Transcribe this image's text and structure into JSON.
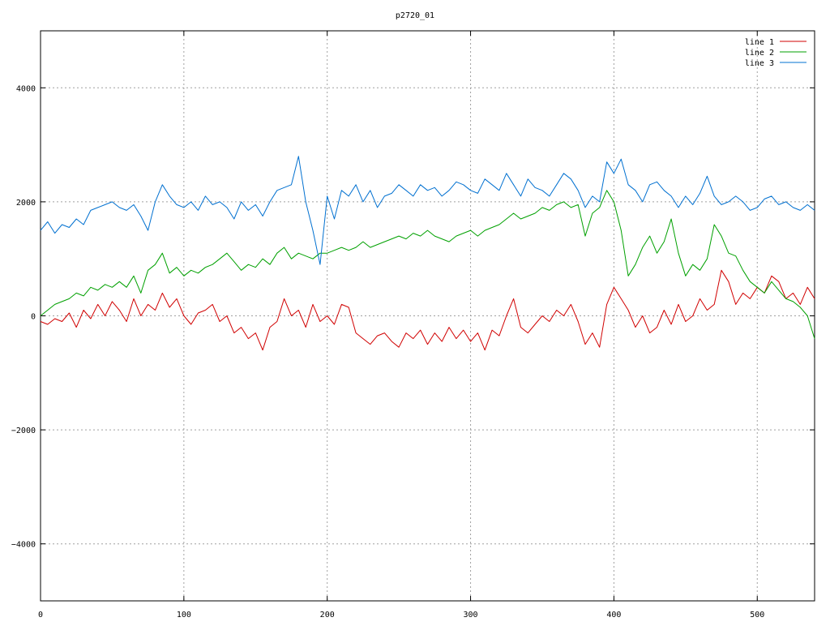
{
  "chart_data": {
    "type": "line",
    "title": "p2720_01",
    "xlim": [
      0,
      540
    ],
    "ylim": [
      -5000,
      5000
    ],
    "x_ticks": [
      0,
      100,
      200,
      300,
      400,
      500
    ],
    "y_ticks": [
      -4000,
      -2000,
      0,
      2000,
      4000
    ],
    "x_tick_labels": [
      "0",
      "100",
      "200",
      "300",
      "400",
      "500"
    ],
    "y_tick_labels": [
      "-4000",
      "-2000",
      "0",
      "2000",
      "4000"
    ],
    "grid": true,
    "legend_position": "top-right",
    "series": [
      {
        "name": "line 1",
        "color": "#d00000",
        "x": [
          0,
          5,
          10,
          15,
          20,
          25,
          30,
          35,
          40,
          45,
          50,
          55,
          60,
          65,
          70,
          75,
          80,
          85,
          90,
          95,
          100,
          105,
          110,
          115,
          120,
          125,
          130,
          135,
          140,
          145,
          150,
          155,
          160,
          165,
          170,
          175,
          180,
          185,
          190,
          195,
          200,
          205,
          210,
          215,
          220,
          225,
          230,
          235,
          240,
          245,
          250,
          255,
          260,
          265,
          270,
          275,
          280,
          285,
          290,
          295,
          300,
          305,
          310,
          315,
          320,
          325,
          330,
          335,
          340,
          345,
          350,
          355,
          360,
          365,
          370,
          375,
          380,
          385,
          390,
          395,
          400,
          405,
          410,
          415,
          420,
          425,
          430,
          435,
          440,
          445,
          450,
          455,
          460,
          465,
          470,
          475,
          480,
          485,
          490,
          495,
          500,
          505,
          510,
          515,
          520,
          525,
          530,
          535,
          540
        ],
        "y": [
          -100,
          -150,
          -50,
          -100,
          50,
          -200,
          100,
          -50,
          200,
          0,
          250,
          100,
          -100,
          300,
          0,
          200,
          100,
          400,
          150,
          300,
          0,
          -150,
          50,
          100,
          200,
          -100,
          0,
          -300,
          -200,
          -400,
          -300,
          -600,
          -200,
          -100,
          300,
          0,
          100,
          -200,
          200,
          -100,
          0,
          -150,
          200,
          150,
          -300,
          -400,
          -500,
          -350,
          -300,
          -450,
          -550,
          -300,
          -400,
          -250,
          -500,
          -300,
          -450,
          -200,
          -400,
          -250,
          -450,
          -300,
          -600,
          -250,
          -350,
          0,
          300,
          -200,
          -300,
          -150,
          0,
          -100,
          100,
          0,
          200,
          -100,
          -500,
          -300,
          -550,
          200,
          500,
          300,
          100,
          -200,
          0,
          -300,
          -200,
          100,
          -150,
          200,
          -100,
          0,
          300,
          100,
          200,
          800,
          600,
          200,
          400,
          300,
          500,
          400,
          700,
          600,
          300,
          400,
          200,
          500,
          300
        ]
      },
      {
        "name": "line 2",
        "color": "#00a000",
        "x": [
          0,
          5,
          10,
          15,
          20,
          25,
          30,
          35,
          40,
          45,
          50,
          55,
          60,
          65,
          70,
          75,
          80,
          85,
          90,
          95,
          100,
          105,
          110,
          115,
          120,
          125,
          130,
          135,
          140,
          145,
          150,
          155,
          160,
          165,
          170,
          175,
          180,
          185,
          190,
          195,
          200,
          205,
          210,
          215,
          220,
          225,
          230,
          235,
          240,
          245,
          250,
          255,
          260,
          265,
          270,
          275,
          280,
          285,
          290,
          295,
          300,
          305,
          310,
          315,
          320,
          325,
          330,
          335,
          340,
          345,
          350,
          355,
          360,
          365,
          370,
          375,
          380,
          385,
          390,
          395,
          400,
          405,
          410,
          415,
          420,
          425,
          430,
          435,
          440,
          445,
          450,
          455,
          460,
          465,
          470,
          475,
          480,
          485,
          490,
          495,
          500,
          505,
          510,
          515,
          520,
          525,
          530,
          535,
          540
        ],
        "y": [
          0,
          100,
          200,
          250,
          300,
          400,
          350,
          500,
          450,
          550,
          500,
          600,
          500,
          700,
          400,
          800,
          900,
          1100,
          750,
          850,
          700,
          800,
          750,
          850,
          900,
          1000,
          1100,
          950,
          800,
          900,
          850,
          1000,
          900,
          1100,
          1200,
          1000,
          1100,
          1050,
          1000,
          1100,
          1100,
          1150,
          1200,
          1150,
          1200,
          1300,
          1200,
          1250,
          1300,
          1350,
          1400,
          1350,
          1450,
          1400,
          1500,
          1400,
          1350,
          1300,
          1400,
          1450,
          1500,
          1400,
          1500,
          1550,
          1600,
          1700,
          1800,
          1700,
          1750,
          1800,
          1900,
          1850,
          1950,
          2000,
          1900,
          1950,
          1400,
          1800,
          1900,
          2200,
          2000,
          1500,
          700,
          900,
          1200,
          1400,
          1100,
          1300,
          1700,
          1100,
          700,
          900,
          800,
          1000,
          1600,
          1400,
          1100,
          1050,
          800,
          600,
          500,
          400,
          600,
          450,
          300,
          250,
          150,
          0,
          -400
        ]
      },
      {
        "name": "line 3",
        "color": "#0070d0",
        "x": [
          0,
          5,
          10,
          15,
          20,
          25,
          30,
          35,
          40,
          45,
          50,
          55,
          60,
          65,
          70,
          75,
          80,
          85,
          90,
          95,
          100,
          105,
          110,
          115,
          120,
          125,
          130,
          135,
          140,
          145,
          150,
          155,
          160,
          165,
          170,
          175,
          180,
          185,
          190,
          195,
          200,
          205,
          210,
          215,
          220,
          225,
          230,
          235,
          240,
          245,
          250,
          255,
          260,
          265,
          270,
          275,
          280,
          285,
          290,
          295,
          300,
          305,
          310,
          315,
          320,
          325,
          330,
          335,
          340,
          345,
          350,
          355,
          360,
          365,
          370,
          375,
          380,
          385,
          390,
          395,
          400,
          405,
          410,
          415,
          420,
          425,
          430,
          435,
          440,
          445,
          450,
          455,
          460,
          465,
          470,
          475,
          480,
          485,
          490,
          495,
          500,
          505,
          510,
          515,
          520,
          525,
          530,
          535,
          540
        ],
        "y": [
          1500,
          1650,
          1450,
          1600,
          1550,
          1700,
          1600,
          1850,
          1900,
          1950,
          2000,
          1900,
          1850,
          1950,
          1750,
          1500,
          2000,
          2300,
          2100,
          1950,
          1900,
          2000,
          1850,
          2100,
          1950,
          2000,
          1900,
          1700,
          2000,
          1850,
          1950,
          1750,
          2000,
          2200,
          2250,
          2300,
          2800,
          2000,
          1500,
          900,
          2100,
          1700,
          2200,
          2100,
          2300,
          2000,
          2200,
          1900,
          2100,
          2150,
          2300,
          2200,
          2100,
          2300,
          2200,
          2250,
          2100,
          2200,
          2350,
          2300,
          2200,
          2150,
          2400,
          2300,
          2200,
          2500,
          2300,
          2100,
          2400,
          2250,
          2200,
          2100,
          2300,
          2500,
          2400,
          2200,
          1900,
          2100,
          2000,
          2700,
          2500,
          2750,
          2300,
          2200,
          2000,
          2300,
          2350,
          2200,
          2100,
          1900,
          2100,
          1950,
          2150,
          2450,
          2100,
          1950,
          2000,
          2100,
          2000,
          1850,
          1900,
          2050,
          2100,
          1950,
          2000,
          1900,
          1850,
          1950,
          1850
        ]
      }
    ]
  }
}
